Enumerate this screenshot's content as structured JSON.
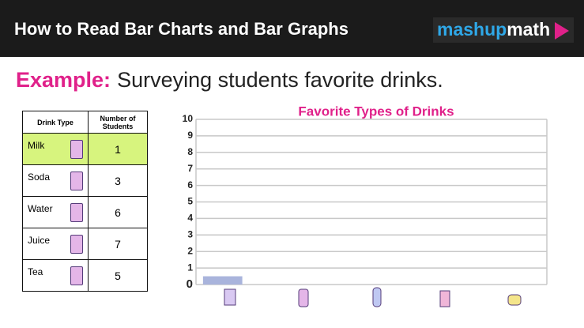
{
  "header": {
    "title": "How to Read Bar Charts and Bar Graphs",
    "brand": {
      "first": "mashup",
      "second": "math"
    }
  },
  "example": {
    "label": "Example:",
    "text": "Surveying students favorite drinks."
  },
  "table": {
    "columns": [
      "Drink Type",
      "Number of Students"
    ],
    "rows": [
      [
        "Milk",
        "1"
      ],
      [
        "Soda",
        "3"
      ],
      [
        "Water",
        "6"
      ],
      [
        "Juice",
        "7"
      ],
      [
        "Tea",
        "5"
      ]
    ]
  },
  "chart_data": {
    "type": "bar",
    "title": "Favorite Types of Drinks",
    "categories": [
      null,
      null,
      null,
      null,
      null
    ],
    "values": [
      0.5,
      null,
      null,
      null,
      null
    ],
    "color": "#a9b4dc",
    "ylim": [
      0,
      10
    ],
    "yticks": [
      0,
      1,
      2,
      3,
      4,
      5,
      6,
      7,
      8,
      9,
      10
    ],
    "grid": true
  }
}
